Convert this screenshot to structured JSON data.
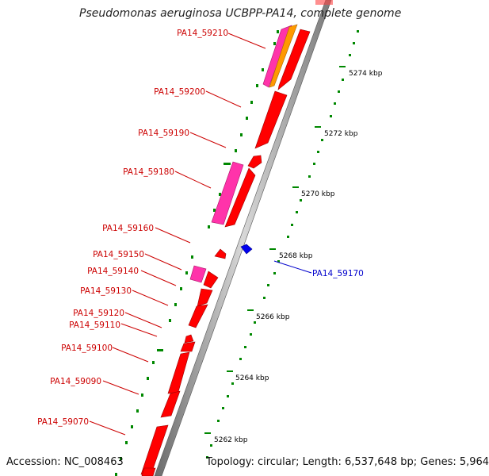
{
  "title": "Pseudomonas aeruginosa UCBPP-PA14, complete genome",
  "accession": "Accession: NC_008463",
  "topology": "Topology: circular; Length: 6,537,648 bp; Genes: 5,964",
  "colors": {
    "forward_gene": "#ff0000",
    "reverse_gene": "#0000ee",
    "highlight": "#ff33aa",
    "orange": "#ff9900",
    "tick": "#008800",
    "label_red": "#cc0000",
    "label_blue": "#0000cc"
  },
  "tick_labels": [
    "5274 kbp",
    "5272 kbp",
    "5270 kbp",
    "5268 kbp",
    "5266 kbp",
    "5264 kbp",
    "5262 kbp"
  ],
  "gene_labels": [
    "PA14_59210",
    "PA14_59200",
    "PA14_59190",
    "PA14_59180",
    "PA14_59160",
    "PA14_59150",
    "PA14_59140",
    "PA14_59130",
    "PA14_59120",
    "PA14_59110",
    "PA14_59100",
    "PA14_59090",
    "PA14_59070",
    "PA14_59170"
  ]
}
